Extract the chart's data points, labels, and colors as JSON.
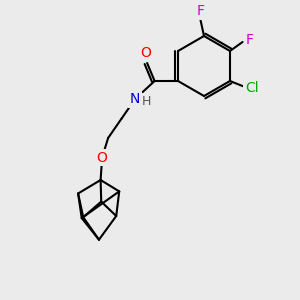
{
  "bg_color": "#ebebeb",
  "atom_colors": {
    "O": "#ff0000",
    "N": "#0000cc",
    "F": "#cc00cc",
    "Cl": "#00aa00",
    "H": "#888888",
    "C": "#000000"
  },
  "bond_color": "#000000",
  "bond_width": 1.5,
  "font_size_atoms": 10
}
